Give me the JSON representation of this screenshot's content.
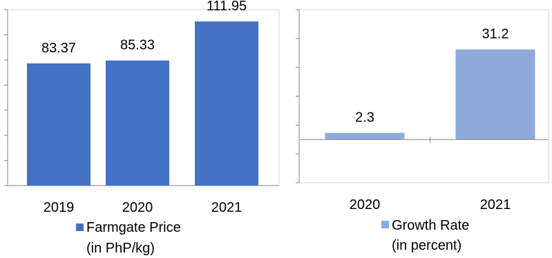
{
  "chart_data": [
    {
      "type": "bar",
      "title": "",
      "categories": [
        "2019",
        "2020",
        "2021"
      ],
      "series": [
        {
          "name": "Farmgate Price",
          "values": [
            83.37,
            85.33,
            111.95
          ],
          "color": "#4472C4"
        }
      ],
      "legend": {
        "line1": "Farmgate Price",
        "line2": "(in PhP/kg)",
        "position": "bottom"
      },
      "data_labels": [
        "83.37",
        "85.33",
        "111.95"
      ],
      "xlabel": "",
      "ylabel": "",
      "ylim": [
        0,
        120
      ],
      "grid": false
    },
    {
      "type": "bar",
      "title": "",
      "categories": [
        "2020",
        "2021"
      ],
      "series": [
        {
          "name": "Growth Rate",
          "values": [
            2.3,
            31.2
          ],
          "color": "#8EAADB"
        }
      ],
      "legend": {
        "line1": "Growth Rate",
        "line2": "(in percent)",
        "position": "bottom"
      },
      "data_labels": [
        "2.3",
        "31.2"
      ],
      "xlabel": "",
      "ylabel": "",
      "ylim": [
        -15,
        45
      ],
      "grid": false
    }
  ]
}
